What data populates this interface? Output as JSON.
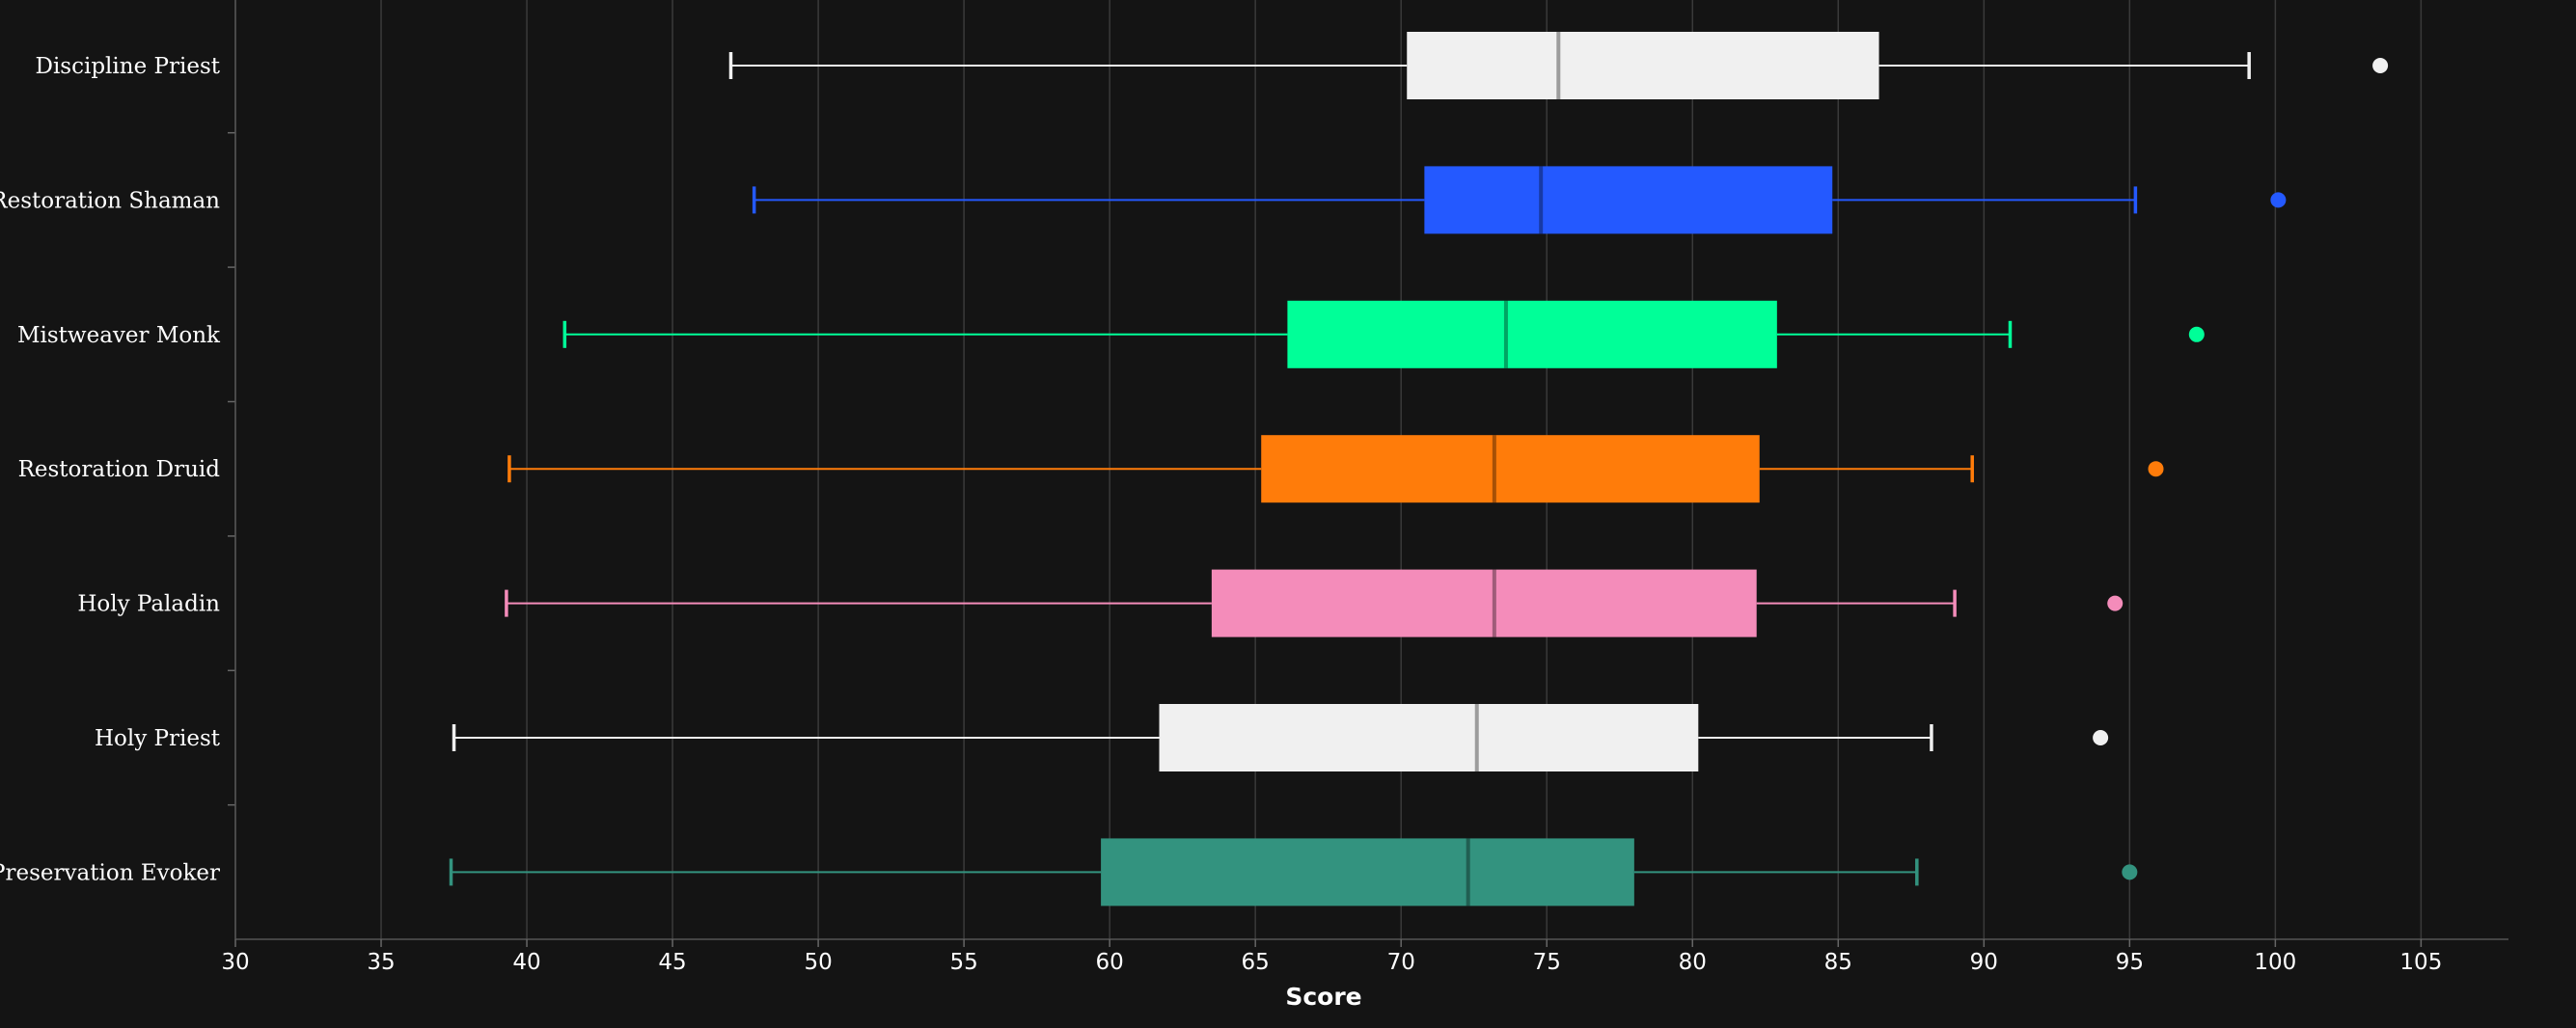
{
  "chart_data": {
    "type": "boxplot",
    "orientation": "horizontal",
    "xlabel": "Score",
    "xlim": [
      30,
      108
    ],
    "xticks": [
      30,
      35,
      40,
      45,
      50,
      55,
      60,
      65,
      70,
      75,
      80,
      85,
      90,
      95,
      100,
      105
    ],
    "grid": "vertical",
    "categories": [
      {
        "name": "Discipline Priest",
        "color": "#f0f0f0",
        "min": 47.0,
        "q1": 70.2,
        "median": 75.4,
        "q3": 86.4,
        "max": 99.1,
        "outliers": [
          103.6
        ]
      },
      {
        "name": "Restoration Shaman",
        "color": "#2459ff",
        "min": 47.8,
        "q1": 70.8,
        "median": 74.8,
        "q3": 84.8,
        "max": 95.2,
        "outliers": [
          100.1
        ]
      },
      {
        "name": "Mistweaver Monk",
        "color": "#00ff98",
        "min": 41.3,
        "q1": 66.1,
        "median": 73.6,
        "q3": 82.9,
        "max": 90.9,
        "outliers": [
          97.3
        ]
      },
      {
        "name": "Restoration Druid",
        "color": "#ff7c0a",
        "min": 39.4,
        "q1": 65.2,
        "median": 73.2,
        "q3": 82.3,
        "max": 89.6,
        "outliers": [
          95.9
        ]
      },
      {
        "name": "Holy Paladin",
        "color": "#f48cba",
        "min": 39.3,
        "q1": 63.5,
        "median": 73.2,
        "q3": 82.2,
        "max": 89.0,
        "outliers": [
          94.5
        ]
      },
      {
        "name": "Holy Priest",
        "color": "#f0f0f0",
        "min": 37.5,
        "q1": 61.7,
        "median": 72.6,
        "q3": 80.2,
        "max": 88.2,
        "outliers": [
          94.0
        ]
      },
      {
        "name": "Preservation Evoker",
        "color": "#33937f",
        "min": 37.4,
        "q1": 59.7,
        "median": 72.3,
        "q3": 78.0,
        "max": 87.7,
        "outliers": [
          95.0
        ]
      }
    ]
  }
}
